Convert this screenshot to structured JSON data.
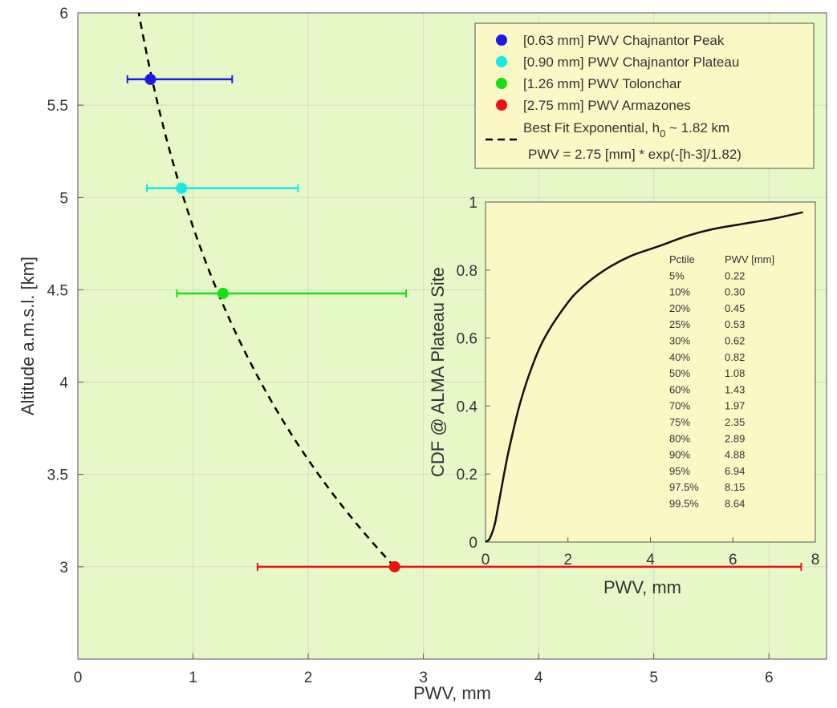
{
  "colors": {
    "main_bg": "#e6f8c8",
    "inset_bg": "#fbf8c6",
    "legend_bg": "#fbf8c6",
    "grid": "#d2dcc0",
    "peak": "#1a1ae6",
    "plateau": "#15e8e8",
    "toloncar": "#15e015",
    "armazones": "#ee1111",
    "fit": "#000000"
  },
  "chart_data": [
    {
      "type": "scatter",
      "title": "",
      "xlabel": "PWV, mm",
      "ylabel": "Altitude a.m.s.l. [km]",
      "xlim": [
        0,
        6.5
      ],
      "ylim": [
        2.5,
        6
      ],
      "xticks": [
        0,
        1,
        2,
        3,
        4,
        5,
        6
      ],
      "yticks": [
        3,
        3.5,
        4,
        4.5,
        5,
        5.5,
        6
      ],
      "xtick_labels": [
        "0",
        "1",
        "2",
        "3",
        "4",
        "5",
        "6"
      ],
      "ytick_labels": [
        "3",
        "3.5",
        "4",
        "4.5",
        "5",
        "5.5",
        "6"
      ],
      "grid": true,
      "legend_position": "top-right",
      "series": [
        {
          "name": "[0.63 mm] PWV Chajnantor Peak",
          "color_key": "peak",
          "x": 0.63,
          "y": 5.64,
          "xerr_low": 0.43,
          "xerr_high": 1.34
        },
        {
          "name": "[0.90 mm] PWV Chajnantor Plateau",
          "color_key": "plateau",
          "x": 0.9,
          "y": 5.05,
          "xerr_low": 0.6,
          "xerr_high": 1.91
        },
        {
          "name": "[1.26 mm] PWV Tolonchar",
          "color_key": "toloncar",
          "x": 1.26,
          "y": 4.48,
          "xerr_low": 0.86,
          "xerr_high": 2.85
        },
        {
          "name": "[2.75 mm] PWV Armazones",
          "color_key": "armazones",
          "x": 2.75,
          "y": 3.0,
          "xerr_low": 1.56,
          "xerr_high": 6.28
        }
      ],
      "fit": {
        "name_line1": "Best Fit Exponential, h",
        "name_sub": "0",
        "name_rest": " ~ 1.82 km",
        "name_line2": "PWV = 2.75 [mm] * exp(-[h-3]/1.82)",
        "a": 2.75,
        "h0": 1.82,
        "h_ref": 3,
        "y_range": [
          3,
          6
        ]
      }
    },
    {
      "type": "line",
      "title": "",
      "xlabel": "PWV, mm",
      "ylabel": "CDF @ ALMA Plateau Site",
      "xlim": [
        0,
        8
      ],
      "ylim": [
        0,
        1
      ],
      "xticks": [
        0,
        2,
        4,
        6,
        8
      ],
      "yticks": [
        0,
        0.2,
        0.4,
        0.6,
        0.8,
        1
      ],
      "xtick_labels": [
        "0",
        "2",
        "4",
        "6",
        "8"
      ],
      "ytick_labels": [
        "0",
        "0.2",
        "0.4",
        "0.6",
        "0.8",
        "1"
      ],
      "grid": false,
      "x": [
        0,
        0.1,
        0.22,
        0.3,
        0.45,
        0.53,
        0.62,
        0.82,
        1.08,
        1.43,
        1.97,
        2.35,
        2.89,
        3.5,
        4.2,
        4.88,
        5.5,
        6.2,
        6.94,
        7.7
      ],
      "y": [
        0,
        0.01,
        0.05,
        0.1,
        0.2,
        0.25,
        0.3,
        0.4,
        0.5,
        0.6,
        0.7,
        0.75,
        0.8,
        0.84,
        0.87,
        0.9,
        0.92,
        0.935,
        0.95,
        0.97
      ],
      "table": {
        "headers": [
          "Pctile",
          "PWV [mm]"
        ],
        "rows": [
          [
            "5%",
            "0.22"
          ],
          [
            "10%",
            "0.30"
          ],
          [
            "20%",
            "0.45"
          ],
          [
            "25%",
            "0.53"
          ],
          [
            "30%",
            "0.62"
          ],
          [
            "40%",
            "0.82"
          ],
          [
            "50%",
            "1.08"
          ],
          [
            "60%",
            "1.43"
          ],
          [
            "70%",
            "1.97"
          ],
          [
            "75%",
            "2.35"
          ],
          [
            "80%",
            "2.89"
          ],
          [
            "90%",
            "4.88"
          ],
          [
            "95%",
            "6.94"
          ],
          [
            "97.5%",
            "8.15"
          ],
          [
            "99.5%",
            "8.64"
          ]
        ]
      }
    }
  ]
}
